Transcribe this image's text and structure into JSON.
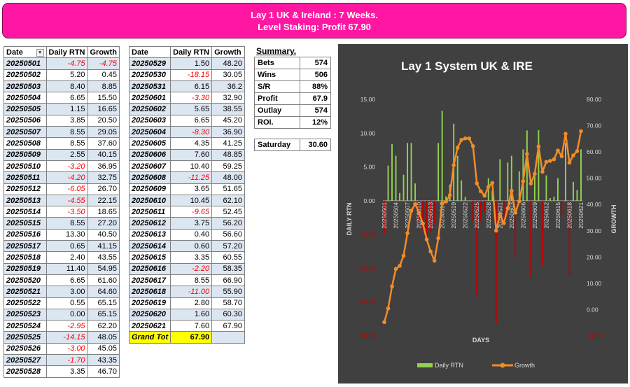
{
  "banner": {
    "line1": "Lay 1 UK & Ireland : 7 Weeks.",
    "line2": "Level Staking: Profit 67.90"
  },
  "table_left": {
    "headers": [
      "Date",
      "Daily RTN",
      "Growth"
    ],
    "filter_icon": "dropdown-filter-icon",
    "rows": [
      [
        "20250501",
        "-4.75",
        "-4.75"
      ],
      [
        "20250502",
        "5.20",
        "0.45"
      ],
      [
        "20250503",
        "8.40",
        "8.85"
      ],
      [
        "20250504",
        "6.65",
        "15.50"
      ],
      [
        "20250505",
        "1.15",
        "16.65"
      ],
      [
        "20250506",
        "3.85",
        "20.50"
      ],
      [
        "20250507",
        "8.55",
        "29.05"
      ],
      [
        "20250508",
        "8.55",
        "37.60"
      ],
      [
        "20250509",
        "2.55",
        "40.15"
      ],
      [
        "20250510",
        "-3.20",
        "36.95"
      ],
      [
        "20250511",
        "-4.20",
        "32.75"
      ],
      [
        "20250512",
        "-6.05",
        "26.70"
      ],
      [
        "20250513",
        "-4.55",
        "22.15"
      ],
      [
        "20250514",
        "-3.50",
        "18.65"
      ],
      [
        "20250515",
        "8.55",
        "27.20"
      ],
      [
        "20250516",
        "13.30",
        "40.50"
      ],
      [
        "20250517",
        "0.65",
        "41.15"
      ],
      [
        "20250518",
        "2.40",
        "43.55"
      ],
      [
        "20250519",
        "11.40",
        "54.95"
      ],
      [
        "20250520",
        "6.65",
        "61.60"
      ],
      [
        "20250521",
        "3.00",
        "64.60"
      ],
      [
        "20250522",
        "0.55",
        "65.15"
      ],
      [
        "20250523",
        "0.00",
        "65.15"
      ],
      [
        "20250524",
        "-2.95",
        "62.20"
      ],
      [
        "20250525",
        "-14.15",
        "48.05"
      ],
      [
        "20250526",
        "-3.00",
        "45.05"
      ],
      [
        "20250527",
        "-1.70",
        "43.35"
      ],
      [
        "20250528",
        "3.35",
        "46.70"
      ]
    ]
  },
  "table_right": {
    "headers": [
      "Date",
      "Daily RTN",
      "Growth"
    ],
    "rows": [
      [
        "20250529",
        "1.50",
        "48.20"
      ],
      [
        "20250530",
        "-18.15",
        "30.05"
      ],
      [
        "20250531",
        "6.15",
        "36.2"
      ],
      [
        "20250601",
        "-3.30",
        "32.90"
      ],
      [
        "20250602",
        "5.65",
        "38.55"
      ],
      [
        "20250603",
        "6.65",
        "45.20"
      ],
      [
        "20250604",
        "-8.30",
        "36.90"
      ],
      [
        "20250605",
        "4.35",
        "41.25"
      ],
      [
        "20250606",
        "7.60",
        "48.85"
      ],
      [
        "20250607",
        "10.40",
        "59.25"
      ],
      [
        "20250608",
        "-11.25",
        "48.00"
      ],
      [
        "20250609",
        "3.65",
        "51.65"
      ],
      [
        "20250610",
        "10.45",
        "62.10"
      ],
      [
        "20250611",
        "-9.65",
        "52.45"
      ],
      [
        "20250612",
        "3.75",
        "56.20"
      ],
      [
        "20250613",
        "0.40",
        "56.60"
      ],
      [
        "20250614",
        "0.60",
        "57.20"
      ],
      [
        "20250615",
        "3.35",
        "60.55"
      ],
      [
        "20250616",
        "-2.20",
        "58.35"
      ],
      [
        "20250617",
        "8.55",
        "66.90"
      ],
      [
        "20250618",
        "-11.00",
        "55.90"
      ],
      [
        "20250619",
        "2.80",
        "58.70"
      ],
      [
        "20250620",
        "1.60",
        "60.30"
      ],
      [
        "20250621",
        "7.60",
        "67.90"
      ]
    ],
    "grand_label": "Grand Tot",
    "grand_value": "67.90"
  },
  "summary": {
    "title": "Summary.",
    "rows": [
      [
        "Bets",
        "574"
      ],
      [
        "Wins",
        "506"
      ],
      [
        "S/R",
        "88%"
      ],
      [
        "Profit",
        "67.9"
      ],
      [
        "Outlay",
        "574"
      ],
      [
        "ROI.",
        "12%"
      ]
    ],
    "saturday_label": "Saturday",
    "saturday_value": "30.60"
  },
  "chart_data": {
    "type": "bar+line",
    "title": "Lay 1 System UK & IRE",
    "xlabel": "DAYS",
    "ylabel_left": "DAILY RTN",
    "ylabel_right": "GROWTH",
    "ylim_left": [
      -20,
      15
    ],
    "ylim_right": [
      -10,
      80
    ],
    "yticks_left": [
      "15.00",
      "10.00",
      "5.00",
      "0.00",
      "-5.00",
      "-10.00",
      "-15.00",
      "-20.00"
    ],
    "yticks_right": [
      "80.00",
      "70.00",
      "60.00",
      "50.00",
      "40.00",
      "30.00",
      "20.00",
      "10.00",
      "0.00",
      "-10.00"
    ],
    "x_tick_labels": [
      "20250501",
      "20250504",
      "20250507",
      "20250510",
      "20250513",
      "20250516",
      "20250519",
      "20250522",
      "20250525",
      "20250528",
      "20250531",
      "20250603",
      "20250606",
      "20250609",
      "20250612",
      "20250615",
      "20250618",
      "20250621"
    ],
    "x": [
      "20250501",
      "20250502",
      "20250503",
      "20250504",
      "20250505",
      "20250506",
      "20250507",
      "20250508",
      "20250509",
      "20250510",
      "20250511",
      "20250512",
      "20250513",
      "20250514",
      "20250515",
      "20250516",
      "20250517",
      "20250518",
      "20250519",
      "20250520",
      "20250521",
      "20250522",
      "20250523",
      "20250524",
      "20250525",
      "20250526",
      "20250527",
      "20250528",
      "20250529",
      "20250530",
      "20250531",
      "20250601",
      "20250602",
      "20250603",
      "20250604",
      "20250605",
      "20250606",
      "20250607",
      "20250608",
      "20250609",
      "20250610",
      "20250611",
      "20250612",
      "20250613",
      "20250614",
      "20250615",
      "20250616",
      "20250617",
      "20250618",
      "20250619",
      "20250620",
      "20250621"
    ],
    "series": [
      {
        "name": "Daily RTN",
        "type": "bar",
        "axis": "left",
        "values": [
          -4.75,
          5.2,
          8.4,
          6.65,
          1.15,
          3.85,
          8.55,
          8.55,
          2.55,
          -3.2,
          -4.2,
          -6.05,
          -4.55,
          -3.5,
          8.55,
          13.3,
          0.65,
          2.4,
          11.4,
          6.65,
          3.0,
          0.55,
          0.0,
          -2.95,
          -14.15,
          -3.0,
          -1.7,
          3.35,
          1.5,
          -18.15,
          6.15,
          -3.3,
          5.65,
          6.65,
          -8.3,
          4.35,
          7.6,
          10.4,
          -11.25,
          3.65,
          10.45,
          -9.65,
          3.75,
          0.4,
          0.6,
          3.35,
          -2.2,
          8.55,
          -11.0,
          2.8,
          1.6,
          7.6
        ]
      },
      {
        "name": "Growth",
        "type": "line",
        "axis": "right",
        "values": [
          -4.75,
          0.45,
          8.85,
          15.5,
          16.65,
          20.5,
          29.05,
          37.6,
          40.15,
          36.95,
          32.75,
          26.7,
          22.15,
          18.65,
          27.2,
          40.5,
          41.15,
          43.55,
          54.95,
          61.6,
          64.6,
          65.15,
          65.15,
          62.2,
          48.05,
          45.05,
          43.35,
          46.7,
          48.2,
          30.05,
          36.2,
          32.9,
          38.55,
          45.2,
          36.9,
          41.25,
          48.85,
          59.25,
          48.0,
          51.65,
          62.1,
          52.45,
          56.2,
          56.6,
          57.2,
          60.55,
          58.35,
          66.9,
          55.9,
          58.7,
          60.3,
          67.9
        ]
      }
    ],
    "colors": {
      "positive_bar": "#92d050",
      "negative_bar": "#c00000",
      "line": "#f28c28",
      "background": "#404040",
      "axis_text": "#d9d9d9"
    },
    "legend": {
      "position": "bottom",
      "entries": [
        "Daily RTN",
        "Growth"
      ]
    },
    "grid": false
  }
}
